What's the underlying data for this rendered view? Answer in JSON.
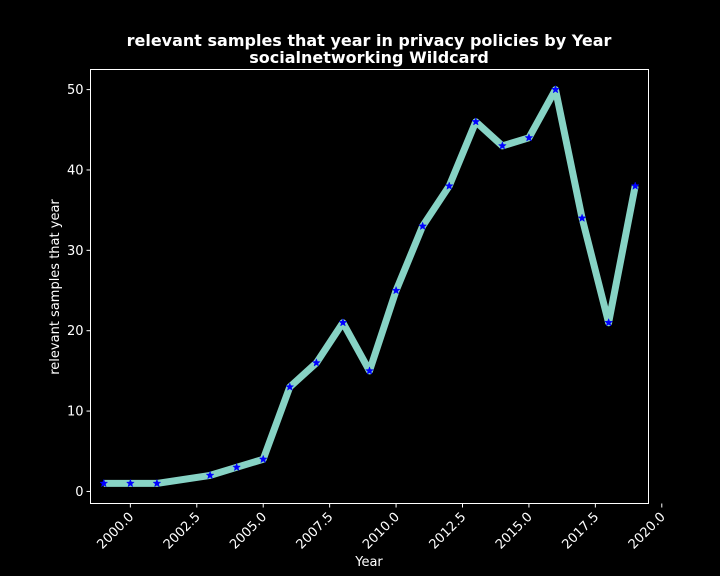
{
  "chart_data": {
    "type": "line",
    "title": [
      "relevant samples that year in privacy policies by Year",
      "socialnetworking Wildcard"
    ],
    "xlabel": "Year",
    "ylabel": "relevant samples that year",
    "xlim": [
      1998.5,
      2019.5
    ],
    "ylim": [
      -1.5,
      52.5
    ],
    "x_ticks": [
      2000.0,
      2002.5,
      2005.0,
      2007.5,
      2010.0,
      2012.5,
      2015.0,
      2017.5,
      2020.0
    ],
    "x_tick_labels": [
      "2000.0",
      "2002.5",
      "2005.0",
      "2007.5",
      "2010.0",
      "2012.5",
      "2015.0",
      "2017.5",
      "2020.0"
    ],
    "y_ticks": [
      0,
      10,
      20,
      30,
      40,
      50
    ],
    "y_tick_labels": [
      "0",
      "10",
      "20",
      "30",
      "40",
      "50"
    ],
    "grid": false,
    "series": [
      {
        "line_color": "#87d3c5",
        "marker_color": "#0000ff",
        "marker": "star",
        "x": [
          1999,
          2000,
          2001,
          2003,
          2004,
          2005,
          2006,
          2007,
          2008,
          2009,
          2010,
          2011,
          2012,
          2013,
          2014,
          2015,
          2016,
          2017,
          2018,
          2019
        ],
        "y": [
          1,
          1,
          1,
          2,
          3,
          4,
          13,
          16,
          21,
          15,
          25,
          33,
          38,
          46,
          43,
          44,
          50,
          34,
          21,
          38
        ]
      }
    ]
  }
}
